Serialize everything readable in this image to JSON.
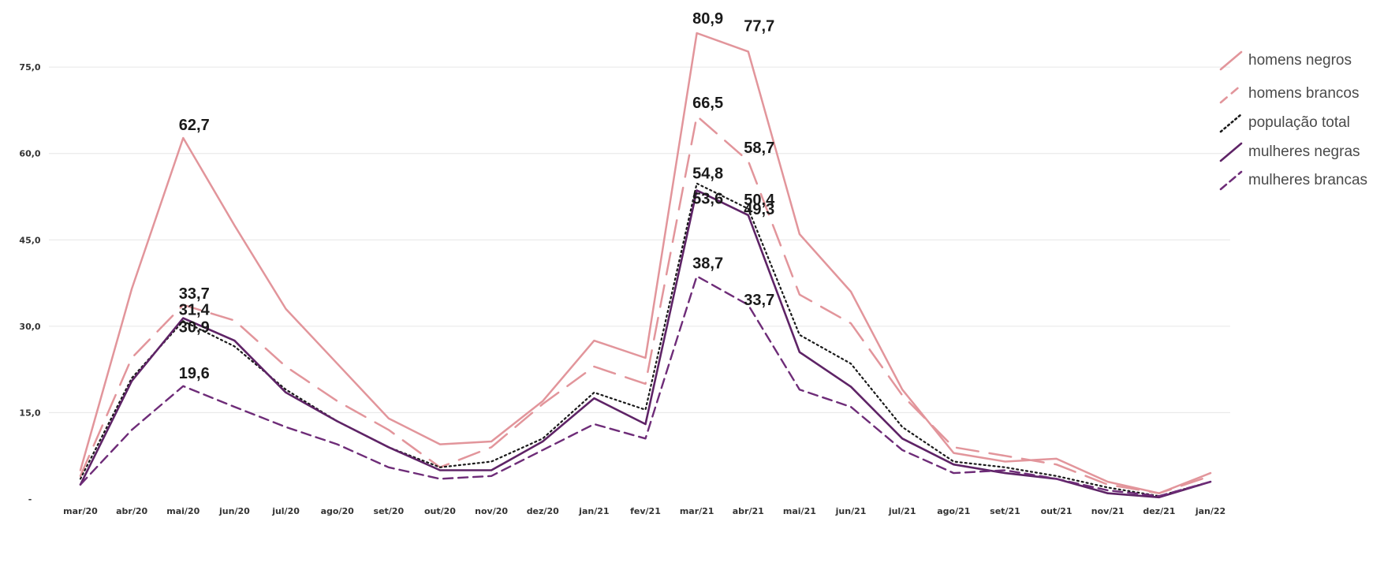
{
  "chart_data": {
    "type": "line",
    "title": "",
    "xlabel": "",
    "ylabel": "",
    "ylim": [
      0,
      82
    ],
    "yticks": [
      0,
      15,
      30,
      45,
      60,
      75
    ],
    "ytick_labels": [
      "-",
      "15,0",
      "30,0",
      "45,0",
      "60,0",
      "75,0"
    ],
    "grid": "horizontal",
    "legend_position": "right",
    "categories": [
      "mar/20",
      "abr/20",
      "mai/20",
      "jun/20",
      "jul/20",
      "ago/20",
      "set/20",
      "out/20",
      "nov/20",
      "dez/20",
      "jan/21",
      "fev/21",
      "mar/21",
      "abr/21",
      "mai/21",
      "jun/21",
      "jul/21",
      "ago/21",
      "set/21",
      "out/21",
      "nov/21",
      "dez/21",
      "jan/22"
    ],
    "series": [
      {
        "key": "hn",
        "name": "homens negros",
        "color": "#e2959b",
        "dash": "solid",
        "values": [
          5.0,
          36.5,
          62.7,
          47.5,
          33.0,
          23.5,
          14.0,
          9.5,
          10.0,
          17.0,
          27.5,
          24.5,
          80.9,
          77.7,
          46.0,
          36.0,
          19.0,
          8.0,
          6.5,
          7.0,
          3.0,
          1.0,
          4.5
        ]
      },
      {
        "key": "hb",
        "name": "homens brancos",
        "color": "#e2959b",
        "dash": "long-dash",
        "values": [
          4.0,
          24.5,
          33.7,
          31.0,
          23.0,
          17.0,
          12.0,
          5.5,
          9.0,
          16.5,
          23.0,
          20.0,
          66.5,
          58.7,
          35.5,
          30.5,
          18.0,
          9.0,
          7.5,
          6.0,
          2.5,
          1.0,
          4.0
        ]
      },
      {
        "key": "pt",
        "name": "população total",
        "color": "#1a1a1a",
        "dash": "dotted",
        "values": [
          3.5,
          21.0,
          30.9,
          26.5,
          19.0,
          13.5,
          9.0,
          5.5,
          6.5,
          10.5,
          18.5,
          15.5,
          54.8,
          50.4,
          28.5,
          23.5,
          12.5,
          6.5,
          5.5,
          4.0,
          2.0,
          0.5,
          3.0
        ]
      },
      {
        "key": "mn",
        "name": "mulheres negras",
        "color": "#5e2366",
        "dash": "solid",
        "values": [
          2.5,
          20.5,
          31.4,
          27.5,
          18.5,
          13.5,
          9.0,
          5.0,
          5.0,
          10.0,
          17.5,
          13.0,
          53.6,
          49.3,
          25.5,
          19.5,
          10.5,
          6.0,
          4.5,
          3.5,
          1.0,
          0.3,
          3.0
        ]
      },
      {
        "key": "mb",
        "name": "mulheres brancas",
        "color": "#6e2c78",
        "dash": "dashed",
        "values": [
          2.5,
          12.0,
          19.6,
          16.0,
          12.5,
          9.5,
          5.5,
          3.5,
          4.0,
          8.5,
          13.0,
          10.5,
          38.7,
          33.7,
          19.0,
          16.0,
          8.5,
          4.5,
          5.0,
          3.5,
          1.5,
          0.5,
          3.0
        ]
      }
    ],
    "data_labels": [
      {
        "series": "hn",
        "index": 2,
        "text": "62,7"
      },
      {
        "series": "hb",
        "index": 2,
        "text": "33,7"
      },
      {
        "series": "mn",
        "index": 2,
        "text": "31,4"
      },
      {
        "series": "pt",
        "index": 2,
        "text": "30,9"
      },
      {
        "series": "mb",
        "index": 2,
        "text": "19,6"
      },
      {
        "series": "hn",
        "index": 12,
        "text": "80,9"
      },
      {
        "series": "hb",
        "index": 12,
        "text": "66,5"
      },
      {
        "series": "pt",
        "index": 12,
        "text": "54,8"
      },
      {
        "series": "mn",
        "index": 12,
        "text": "53,6"
      },
      {
        "series": "mb",
        "index": 12,
        "text": "38,7"
      },
      {
        "series": "hn",
        "index": 13,
        "text": "77,7"
      },
      {
        "series": "hb",
        "index": 13,
        "text": "58,7"
      },
      {
        "series": "pt",
        "index": 13,
        "text": "50,4"
      },
      {
        "series": "mn",
        "index": 13,
        "text": "49,3"
      },
      {
        "series": "mb",
        "index": 13,
        "text": "33,7"
      }
    ]
  }
}
